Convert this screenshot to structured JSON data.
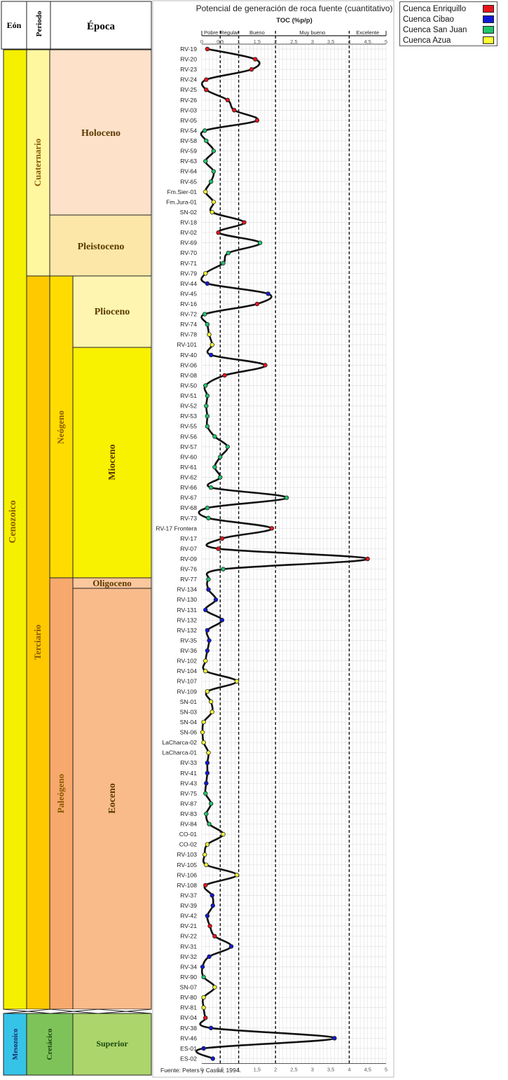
{
  "strat": {
    "headers": {
      "eon": "Eón",
      "period": "Periodo",
      "epoch": "Época"
    },
    "eons": [
      {
        "label": "Cenozoico",
        "color": "#f5ef00"
      },
      {
        "label": "Mesozoico",
        "color": "#36c3e8"
      }
    ],
    "periods": [
      {
        "label": "Cuaternario",
        "color": "#fff7a0"
      },
      {
        "label": "Terciario",
        "color": "#ffc900"
      },
      {
        "label": "Cretácico",
        "color": "#7ec35a"
      }
    ],
    "subperiods": [
      {
        "label": "Neógeno",
        "color": "#ffdc00"
      },
      {
        "label": "Paleógeno",
        "color": "#f7a86d"
      }
    ],
    "epochs": [
      {
        "label": "Holoceno",
        "color": "#fde1c8"
      },
      {
        "label": "Pleistoceno",
        "color": "#fde7a8"
      },
      {
        "label": "Plioceno",
        "color": "#fef6b0"
      },
      {
        "label": "Mioceno",
        "color": "#f8f100"
      },
      {
        "label": "Oligoceno",
        "color": "#fbc79c"
      },
      {
        "label": "Eoceno",
        "color": "#fabb8b"
      },
      {
        "label": "Superior",
        "color": "#acd56c"
      }
    ]
  },
  "legend": [
    {
      "label": "Cuenca Enriquillo",
      "color": "#e8141b"
    },
    {
      "label": "Cuenca Cibao",
      "color": "#1018d8"
    },
    {
      "label": "Cuenca San Juan",
      "color": "#22c46a"
    },
    {
      "label": "Cuenca Azua",
      "color": "#ffff33"
    }
  ],
  "chart_data": {
    "type": "line",
    "title": "Potencial de generación de roca fuente (cuantitativo)",
    "xlabel": "TOC (%p/p)",
    "xlim": [
      0,
      5
    ],
    "x_ticks": [
      "0",
      "0,5",
      "1",
      "1,5",
      "2",
      "2,5",
      "3",
      "3,5",
      "4",
      "4,5",
      "5"
    ],
    "grid": true,
    "classes": [
      {
        "label": "Pobre",
        "range": [
          0,
          0.5
        ]
      },
      {
        "label": "Regular",
        "range": [
          0.5,
          1
        ]
      },
      {
        "label": "Bueno",
        "range": [
          1,
          2
        ]
      },
      {
        "label": "Muy bueno",
        "range": [
          2,
          4
        ]
      },
      {
        "label": "Excelente",
        "range": [
          4,
          5
        ]
      }
    ],
    "thresholds": [
      0.5,
      1,
      2,
      4
    ],
    "source": "Fuente: Peters y Cassa, 1994.",
    "samples": [
      {
        "id": "RV-19",
        "toc": 0.15,
        "basin": "Enriquillo"
      },
      {
        "id": "RV-20",
        "toc": 1.45,
        "basin": "Enriquillo"
      },
      {
        "id": "RV-23",
        "toc": 1.35,
        "basin": "Enriquillo"
      },
      {
        "id": "RV-24",
        "toc": 0.12,
        "basin": "Enriquillo"
      },
      {
        "id": "RV-25",
        "toc": 0.12,
        "basin": "Enriquillo"
      },
      {
        "id": "RV-26",
        "toc": 0.7,
        "basin": "Enriquillo"
      },
      {
        "id": "RV-03",
        "toc": 0.88,
        "basin": "Enriquillo"
      },
      {
        "id": "RV-05",
        "toc": 1.5,
        "basin": "Enriquillo"
      },
      {
        "id": "RV-54",
        "toc": 0.08,
        "basin": "San Juan"
      },
      {
        "id": "RV-58",
        "toc": 0.12,
        "basin": "San Juan"
      },
      {
        "id": "RV-59",
        "toc": 0.32,
        "basin": "San Juan"
      },
      {
        "id": "RV-63",
        "toc": 0.1,
        "basin": "San Juan"
      },
      {
        "id": "RV-64",
        "toc": 0.32,
        "basin": "San Juan"
      },
      {
        "id": "RV-65",
        "toc": 0.25,
        "basin": "San Juan"
      },
      {
        "id": "Fm.Sier-01",
        "toc": 0.1,
        "basin": "Azua"
      },
      {
        "id": "Fm.Jura-01",
        "toc": 0.32,
        "basin": "Azua"
      },
      {
        "id": "SN-02",
        "toc": 0.28,
        "basin": "Azua"
      },
      {
        "id": "RV-18",
        "toc": 1.15,
        "basin": "Enriquillo"
      },
      {
        "id": "RV-02",
        "toc": 0.45,
        "basin": "Enriquillo"
      },
      {
        "id": "RV-69",
        "toc": 1.58,
        "basin": "San Juan"
      },
      {
        "id": "RV-70",
        "toc": 0.72,
        "basin": "San Juan"
      },
      {
        "id": "RV-71",
        "toc": 0.58,
        "basin": "San Juan"
      },
      {
        "id": "RV-79",
        "toc": 0.1,
        "basin": "Azua"
      },
      {
        "id": "RV-44",
        "toc": 0.15,
        "basin": "Cibao"
      },
      {
        "id": "RV-45",
        "toc": 1.8,
        "basin": "Cibao"
      },
      {
        "id": "RV-16",
        "toc": 1.5,
        "basin": "Enriquillo"
      },
      {
        "id": "RV-72",
        "toc": 0.08,
        "basin": "San Juan"
      },
      {
        "id": "RV-74",
        "toc": 0.15,
        "basin": "San Juan"
      },
      {
        "id": "RV-78",
        "toc": 0.2,
        "basin": "Azua"
      },
      {
        "id": "RV-101",
        "toc": 0.28,
        "basin": "Azua"
      },
      {
        "id": "RV-40",
        "toc": 0.25,
        "basin": "Cibao"
      },
      {
        "id": "RV-06",
        "toc": 1.72,
        "basin": "Enriquillo"
      },
      {
        "id": "RV-08",
        "toc": 0.62,
        "basin": "Enriquillo"
      },
      {
        "id": "RV-50",
        "toc": 0.1,
        "basin": "San Juan"
      },
      {
        "id": "RV-51",
        "toc": 0.15,
        "basin": "San Juan"
      },
      {
        "id": "RV-52",
        "toc": 0.12,
        "basin": "San Juan"
      },
      {
        "id": "RV-53",
        "toc": 0.15,
        "basin": "San Juan"
      },
      {
        "id": "RV-55",
        "toc": 0.15,
        "basin": "San Juan"
      },
      {
        "id": "RV-56",
        "toc": 0.35,
        "basin": "San Juan"
      },
      {
        "id": "RV-57",
        "toc": 0.7,
        "basin": "San Juan"
      },
      {
        "id": "RV-60",
        "toc": 0.5,
        "basin": "San Juan"
      },
      {
        "id": "RV-61",
        "toc": 0.35,
        "basin": "San Juan"
      },
      {
        "id": "RV-62",
        "toc": 0.5,
        "basin": "San Juan"
      },
      {
        "id": "RV-66",
        "toc": 0.25,
        "basin": "San Juan"
      },
      {
        "id": "RV-67",
        "toc": 2.3,
        "basin": "San Juan"
      },
      {
        "id": "RV-68",
        "toc": 0.15,
        "basin": "San Juan"
      },
      {
        "id": "RV-73",
        "toc": 0.18,
        "basin": "San Juan"
      },
      {
        "id": "RV-17 Frontera",
        "toc": 1.9,
        "basin": "Enriquillo"
      },
      {
        "id": "RV-17",
        "toc": 0.55,
        "basin": "Enriquillo"
      },
      {
        "id": "RV-07",
        "toc": 0.45,
        "basin": "Enriquillo"
      },
      {
        "id": "RV-09",
        "toc": 4.5,
        "basin": "Enriquillo"
      },
      {
        "id": "RV-76",
        "toc": 0.58,
        "basin": "San Juan"
      },
      {
        "id": "RV-77",
        "toc": 0.18,
        "basin": "San Juan"
      },
      {
        "id": "RV-134",
        "toc": 0.18,
        "basin": "Cibao"
      },
      {
        "id": "RV-130",
        "toc": 0.38,
        "basin": "Cibao"
      },
      {
        "id": "RV-131",
        "toc": 0.1,
        "basin": "Cibao"
      },
      {
        "id": "RV-132 ",
        "toc": 0.55,
        "basin": "Cibao"
      },
      {
        "id": "RV-132",
        "toc": 0.15,
        "basin": "Cibao"
      },
      {
        "id": "RV-35",
        "toc": 0.2,
        "basin": "Cibao"
      },
      {
        "id": "RV-36",
        "toc": 0.15,
        "basin": "Cibao"
      },
      {
        "id": "RV-102",
        "toc": 0.1,
        "basin": "Azua"
      },
      {
        "id": "RV-104",
        "toc": 0.1,
        "basin": "Azua"
      },
      {
        "id": "RV-107",
        "toc": 0.95,
        "basin": "Azua"
      },
      {
        "id": "RV-109",
        "toc": 0.15,
        "basin": "Azua"
      },
      {
        "id": "SN-01",
        "toc": 0.25,
        "basin": "Azua"
      },
      {
        "id": "SN-03",
        "toc": 0.28,
        "basin": "Azua"
      },
      {
        "id": "SN-04",
        "toc": 0.05,
        "basin": "Azua"
      },
      {
        "id": "SN-06",
        "toc": 0.02,
        "basin": "Azua"
      },
      {
        "id": "LaCharca-02",
        "toc": 0.05,
        "basin": "Azua"
      },
      {
        "id": "LaCharca-01",
        "toc": 0.18,
        "basin": "Azua"
      },
      {
        "id": "RV-33",
        "toc": 0.15,
        "basin": "Cibao"
      },
      {
        "id": "RV-41",
        "toc": 0.15,
        "basin": "Cibao"
      },
      {
        "id": "RV-43",
        "toc": 0.12,
        "basin": "Cibao"
      },
      {
        "id": "RV-75",
        "toc": 0.1,
        "basin": "San Juan"
      },
      {
        "id": "RV-87",
        "toc": 0.25,
        "basin": "San Juan"
      },
      {
        "id": "RV-83",
        "toc": 0.12,
        "basin": "San Juan"
      },
      {
        "id": "RV-84",
        "toc": 0.2,
        "basin": "San Juan"
      },
      {
        "id": "CO-01",
        "toc": 0.58,
        "basin": "Azua"
      },
      {
        "id": "CO-02",
        "toc": 0.15,
        "basin": "Azua"
      },
      {
        "id": "RV-103",
        "toc": 0.08,
        "basin": "Azua"
      },
      {
        "id": "RV-105",
        "toc": 0.12,
        "basin": "Azua"
      },
      {
        "id": "RV-106",
        "toc": 0.95,
        "basin": "Azua"
      },
      {
        "id": "RV-108",
        "toc": 0.1,
        "basin": "Enriquillo"
      },
      {
        "id": "RV-37",
        "toc": 0.28,
        "basin": "Cibao"
      },
      {
        "id": "RV-39",
        "toc": 0.3,
        "basin": "Cibao"
      },
      {
        "id": "RV-42",
        "toc": 0.15,
        "basin": "Cibao"
      },
      {
        "id": "RV-21",
        "toc": 0.22,
        "basin": "Enriquillo"
      },
      {
        "id": "RV-22",
        "toc": 0.35,
        "basin": "Enriquillo"
      },
      {
        "id": "RV-31",
        "toc": 0.8,
        "basin": "Cibao"
      },
      {
        "id": "RV-32",
        "toc": 0.2,
        "basin": "Cibao"
      },
      {
        "id": "RV-34",
        "toc": 0.02,
        "basin": "Cibao"
      },
      {
        "id": "RV-90",
        "toc": 0.05,
        "basin": "San Juan"
      },
      {
        "id": "SN-07",
        "toc": 0.35,
        "basin": "Azua"
      },
      {
        "id": "RV-80",
        "toc": 0.05,
        "basin": "Azua"
      },
      {
        "id": "RV-81",
        "toc": 0.05,
        "basin": "Azua"
      },
      {
        "id": "RV-04",
        "toc": 0.1,
        "basin": "Enriquillo"
      },
      {
        "id": "RV-38",
        "toc": 0.25,
        "basin": "Cibao"
      },
      {
        "id": "RV-46",
        "toc": 3.6,
        "basin": "Cibao"
      },
      {
        "id": "ES-01",
        "toc": 0.05,
        "basin": "Cibao"
      },
      {
        "id": "ES-02",
        "toc": 0.3,
        "basin": "Cibao"
      }
    ]
  }
}
